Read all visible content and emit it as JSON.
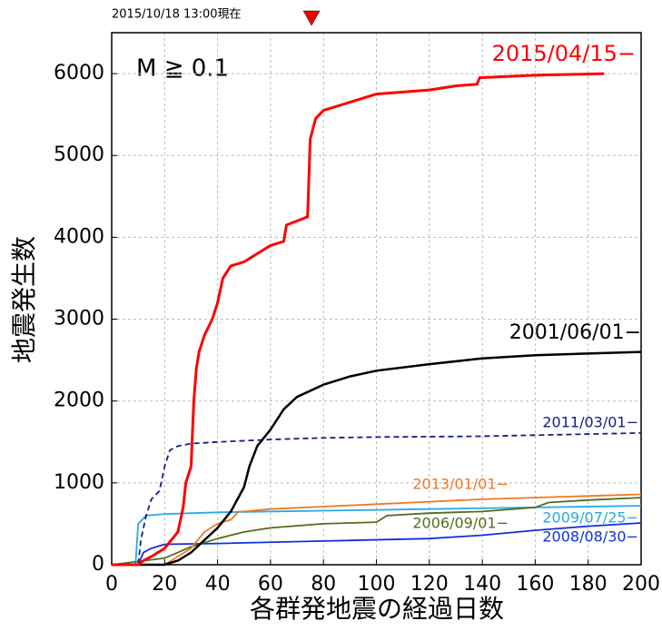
{
  "chart_data": {
    "type": "line",
    "timestamp": "2015/10/18 13:00現在",
    "current_day": 75.5,
    "condition": "M ≧ 0.1",
    "xlabel": "各群発地震の経過日数",
    "ylabel": "地震発生数",
    "xlim": [
      0,
      200
    ],
    "xticks": [
      0,
      20,
      40,
      60,
      80,
      100,
      120,
      140,
      160,
      180,
      200
    ],
    "ylim": [
      0,
      6500
    ],
    "yticks": [
      0,
      1000,
      2000,
      3000,
      4000,
      5000,
      6000
    ],
    "grid": true,
    "series": [
      {
        "name": "2008/08/30−",
        "color": "#1030e0",
        "dashed": false,
        "x": [
          0,
          10,
          12,
          15,
          20,
          40,
          80,
          120,
          140,
          160,
          180,
          200
        ],
        "values": [
          0,
          0,
          150,
          200,
          250,
          260,
          290,
          320,
          360,
          420,
          470,
          510
        ]
      },
      {
        "name": "2009/07/25−",
        "color": "#28a8e8",
        "dashed": false,
        "x": [
          0,
          9,
          10,
          13,
          20,
          40,
          80,
          120,
          160,
          200
        ],
        "values": [
          0,
          0,
          500,
          600,
          620,
          640,
          660,
          680,
          700,
          720
        ]
      },
      {
        "name": "2006/09/01−",
        "color": "#556b1e",
        "dashed": false,
        "x": [
          0,
          20,
          30,
          40,
          50,
          60,
          80,
          100,
          104,
          120,
          140,
          160,
          165,
          180,
          200
        ],
        "values": [
          0,
          80,
          220,
          320,
          400,
          450,
          500,
          520,
          600,
          630,
          650,
          700,
          760,
          790,
          820
        ]
      },
      {
        "name": "2013/01/01−",
        "color": "#f07820",
        "dashed": false,
        "x": [
          0,
          20,
          25,
          30,
          35,
          40,
          45,
          48,
          50,
          60,
          80,
          100,
          120,
          140,
          160,
          180,
          200
        ],
        "values": [
          0,
          0,
          100,
          200,
          400,
          500,
          550,
          650,
          650,
          680,
          710,
          740,
          770,
          800,
          820,
          840,
          860
        ]
      },
      {
        "name": "2011/03/01−",
        "color": "#10208a",
        "dashed": true,
        "x": [
          0,
          10,
          11,
          13,
          15,
          18,
          20,
          22,
          25,
          30,
          40,
          60,
          80,
          100,
          140,
          200
        ],
        "values": [
          0,
          0,
          300,
          600,
          800,
          900,
          1200,
          1400,
          1450,
          1480,
          1500,
          1530,
          1550,
          1560,
          1570,
          1610
        ]
      },
      {
        "name": "2001/06/01−",
        "color": "#000000",
        "dashed": false,
        "x": [
          0,
          20,
          25,
          30,
          35,
          40,
          45,
          50,
          52,
          55,
          60,
          65,
          70,
          80,
          90,
          100,
          120,
          140,
          160,
          180,
          200
        ],
        "values": [
          0,
          0,
          50,
          150,
          300,
          450,
          650,
          950,
          1200,
          1450,
          1650,
          1900,
          2050,
          2200,
          2300,
          2370,
          2450,
          2520,
          2560,
          2580,
          2600
        ]
      },
      {
        "name": "2015/04/15−",
        "color": "#ff0000",
        "dashed": false,
        "x": [
          0,
          10,
          12,
          15,
          20,
          25,
          27,
          28,
          30,
          31,
          32,
          33,
          35,
          38,
          40,
          42,
          45,
          50,
          55,
          60,
          65,
          66,
          70,
          74,
          75,
          77,
          80,
          90,
          100,
          120,
          130,
          138,
          139,
          160,
          186
        ],
        "values": [
          0,
          0,
          50,
          100,
          200,
          400,
          700,
          1000,
          1200,
          2000,
          2400,
          2600,
          2800,
          3000,
          3200,
          3500,
          3650,
          3700,
          3800,
          3900,
          3950,
          4150,
          4200,
          4250,
          5200,
          5450,
          5550,
          5650,
          5750,
          5800,
          5850,
          5870,
          5950,
          5980,
          6000
        ]
      }
    ]
  }
}
